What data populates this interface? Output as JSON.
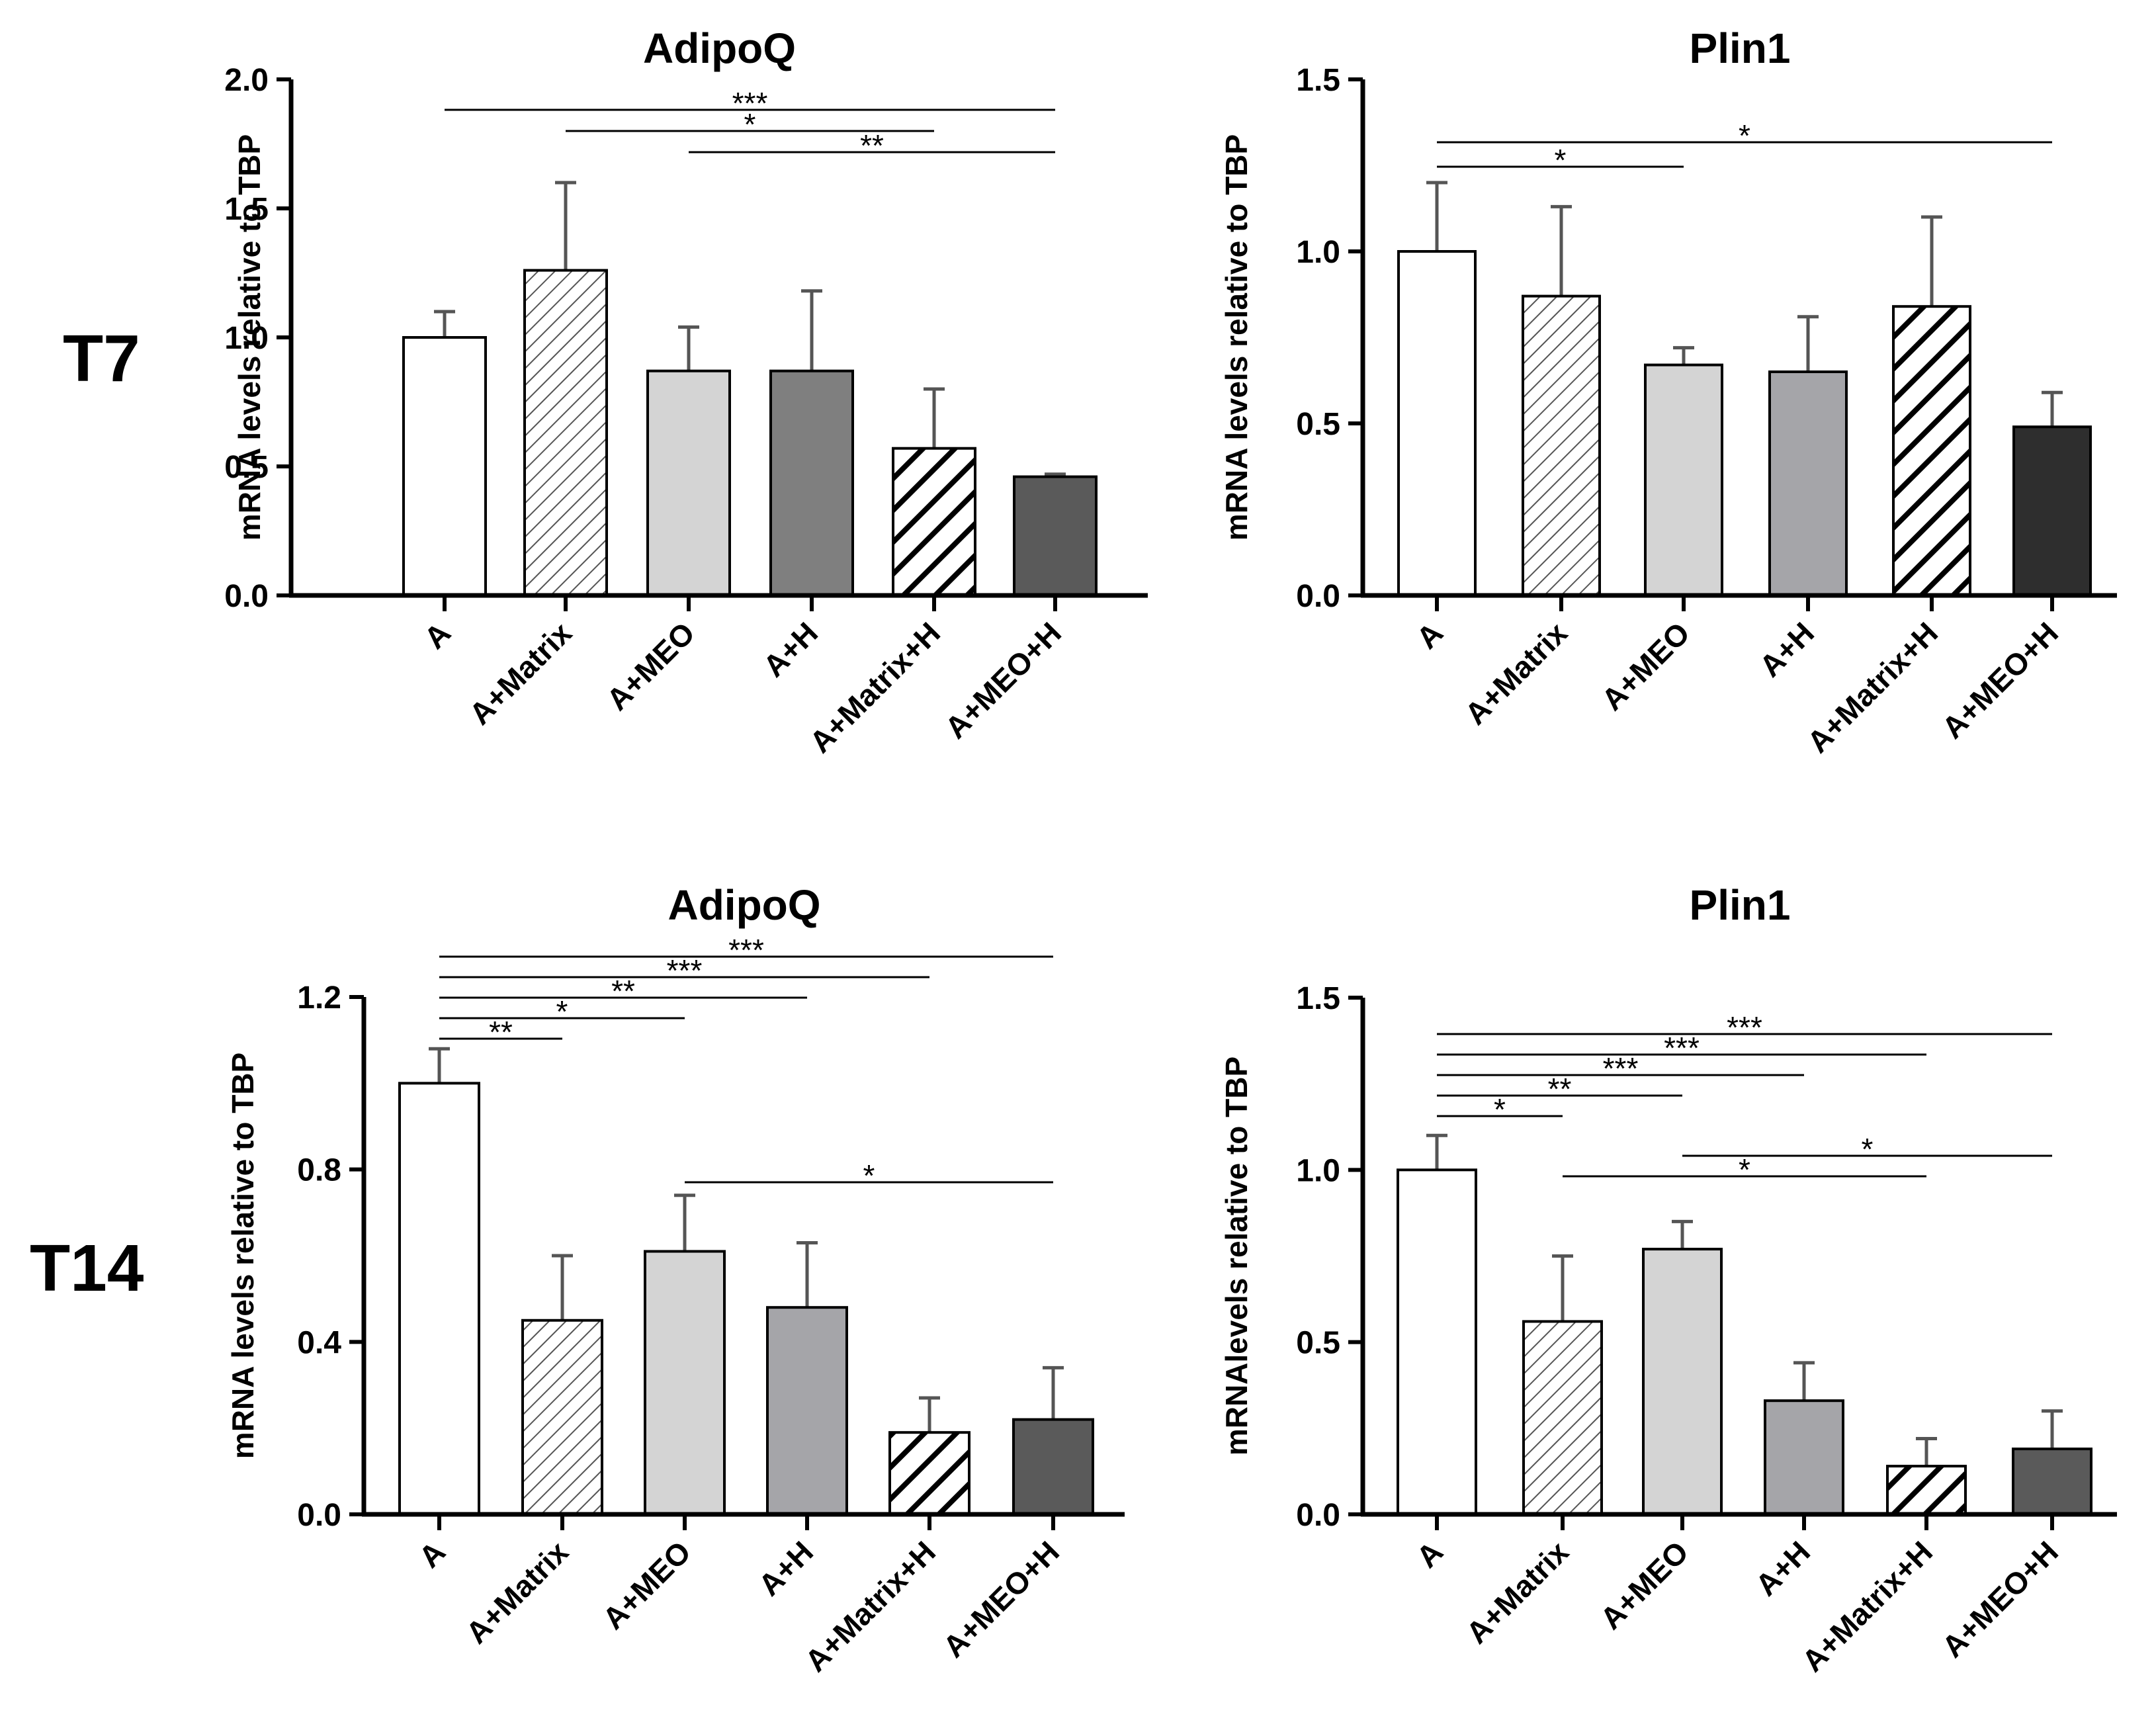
{
  "row_labels": [
    "T7",
    "T14"
  ],
  "colors": {
    "A": "#ffffff",
    "A+Matrix": "hatch-thin",
    "A+MEO": "#d4d4d4",
    "A+H (T7 AdipoQ)": "#7f7f7f",
    "A+H": "#a5a5a9",
    "A+Matrix+H": "hatch-bold",
    "A+MEO+H": "#5a5a5a",
    "A+MEO+H (T7 Plin1)": "#2e2e2e"
  },
  "chart_data": [
    {
      "type": "bar",
      "title": "AdipoQ",
      "ylabel": "mRNA levels relative to TBP",
      "ylim": [
        0,
        2.0
      ],
      "yticks": [
        "0.0",
        "0.5",
        "1.0",
        "1.5",
        "2.0"
      ],
      "categories": [
        "A",
        "A+Matrix",
        "A+MEO",
        "A+H",
        "A+Matrix+H",
        "A+MEO+H"
      ],
      "values": [
        1.0,
        1.26,
        0.87,
        0.87,
        0.57,
        0.46
      ],
      "errors": [
        0.1,
        0.34,
        0.17,
        0.31,
        0.23,
        0.01
      ],
      "significance": [
        {
          "from": 0,
          "to": 5,
          "label": "***"
        },
        {
          "from": 1,
          "to": 4,
          "label": "*"
        },
        {
          "from": 2,
          "to": 5,
          "label": "**"
        }
      ]
    },
    {
      "type": "bar",
      "title": "Plin1",
      "ylabel": "mRNA levels relative to TBP",
      "ylim": [
        0,
        1.5
      ],
      "yticks": [
        "0.0",
        "0.5",
        "1.0",
        "1.5"
      ],
      "categories": [
        "A",
        "A+Matrix",
        "A+MEO",
        "A+H",
        "A+Matrix+H",
        "A+MEO+H"
      ],
      "values": [
        1.0,
        0.87,
        0.67,
        0.65,
        0.84,
        0.49
      ],
      "errors": [
        0.2,
        0.26,
        0.05,
        0.16,
        0.26,
        0.1
      ],
      "significance": [
        {
          "from": 0,
          "to": 5,
          "label": "*"
        },
        {
          "from": 0,
          "to": 2,
          "label": "*"
        }
      ]
    },
    {
      "type": "bar",
      "title": "AdipoQ",
      "ylabel": "mRNA levels relative to TBP",
      "ylim": [
        0,
        1.2
      ],
      "yticks": [
        "0.0",
        "0.4",
        "0.8",
        "1.2"
      ],
      "categories": [
        "A",
        "A+Matrix",
        "A+MEO",
        "A+H",
        "A+Matrix+H",
        "A+MEO+H"
      ],
      "values": [
        1.0,
        0.45,
        0.61,
        0.48,
        0.19,
        0.22
      ],
      "errors": [
        0.08,
        0.15,
        0.13,
        0.15,
        0.08,
        0.12
      ],
      "significance": [
        {
          "from": 0,
          "to": 5,
          "label": "***"
        },
        {
          "from": 0,
          "to": 4,
          "label": "***"
        },
        {
          "from": 0,
          "to": 3,
          "label": "**"
        },
        {
          "from": 0,
          "to": 2,
          "label": "*"
        },
        {
          "from": 0,
          "to": 1,
          "label": "**"
        },
        {
          "from": 2,
          "to": 5,
          "label": "*"
        }
      ]
    },
    {
      "type": "bar",
      "title": "Plin1",
      "ylabel": "mRNAlevels relative to TBP",
      "ylim": [
        0,
        1.5
      ],
      "yticks": [
        "0.0",
        "0.5",
        "1.0",
        "1.5"
      ],
      "categories": [
        "A",
        "A+Matrix",
        "A+MEO",
        "A+H",
        "A+Matrix+H",
        "A+MEO+H"
      ],
      "values": [
        1.0,
        0.56,
        0.77,
        0.33,
        0.14,
        0.19
      ],
      "errors": [
        0.1,
        0.19,
        0.08,
        0.11,
        0.08,
        0.11
      ],
      "significance": [
        {
          "from": 0,
          "to": 5,
          "label": "***"
        },
        {
          "from": 0,
          "to": 4,
          "label": "***"
        },
        {
          "from": 0,
          "to": 3,
          "label": "***"
        },
        {
          "from": 0,
          "to": 2,
          "label": "**"
        },
        {
          "from": 0,
          "to": 1,
          "label": "*"
        },
        {
          "from": 2,
          "to": 5,
          "label": "*"
        },
        {
          "from": 1,
          "to": 4,
          "label": "*"
        }
      ]
    }
  ]
}
